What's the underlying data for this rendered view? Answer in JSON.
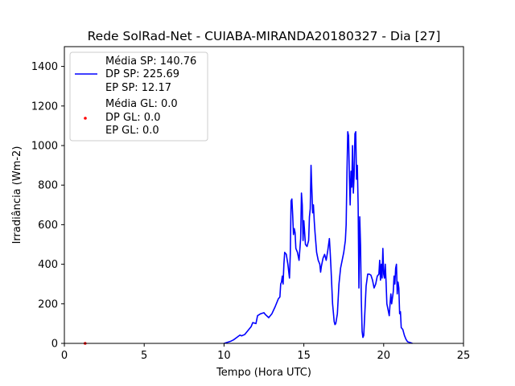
{
  "chart_data": {
    "type": "line",
    "title": "Rede SolRad-Net - CUIABA-MIRANDA20180327 - Dia [27]",
    "xlabel": "Tempo (Hora UTC)",
    "ylabel": "Irradiância (Wm-2)",
    "xlim": [
      0,
      25
    ],
    "ylim": [
      0,
      1500
    ],
    "xticks": [
      0,
      5,
      10,
      15,
      20,
      25
    ],
    "yticks": [
      0,
      200,
      400,
      600,
      800,
      1000,
      1200,
      1400
    ],
    "legend_position": "upper-left",
    "legend": {
      "sp": [
        "Média SP: 140.76",
        "DP SP: 225.69",
        "EP SP: 12.17"
      ],
      "gl": [
        "Média GL: 0.0",
        "DP GL: 0.0",
        "EP GL: 0.0"
      ]
    },
    "colors": {
      "sp": "#0000ff",
      "gl": "#ff0000"
    },
    "series": [
      {
        "values": [
          [
            10.0,
            0
          ],
          [
            10.2,
            5
          ],
          [
            10.4,
            10
          ],
          [
            10.6,
            18
          ],
          [
            10.8,
            30
          ],
          [
            11.0,
            42
          ],
          [
            11.1,
            38
          ],
          [
            11.3,
            45
          ],
          [
            11.5,
            65
          ],
          [
            11.7,
            85
          ],
          [
            11.8,
            105
          ],
          [
            12.0,
            100
          ],
          [
            12.1,
            140
          ],
          [
            12.3,
            150
          ],
          [
            12.5,
            155
          ],
          [
            12.6,
            145
          ],
          [
            12.8,
            130
          ],
          [
            13.0,
            150
          ],
          [
            13.2,
            185
          ],
          [
            13.4,
            225
          ],
          [
            13.5,
            235
          ],
          [
            13.55,
            300
          ],
          [
            13.6,
            310
          ],
          [
            13.65,
            340
          ],
          [
            13.7,
            300
          ],
          [
            13.75,
            400
          ],
          [
            13.8,
            460
          ],
          [
            13.9,
            450
          ],
          [
            14.0,
            400
          ],
          [
            14.1,
            330
          ],
          [
            14.15,
            450
          ],
          [
            14.2,
            720
          ],
          [
            14.25,
            730
          ],
          [
            14.3,
            650
          ],
          [
            14.35,
            550
          ],
          [
            14.4,
            580
          ],
          [
            14.45,
            560
          ],
          [
            14.5,
            480
          ],
          [
            14.6,
            460
          ],
          [
            14.7,
            420
          ],
          [
            14.8,
            530
          ],
          [
            14.85,
            760
          ],
          [
            14.9,
            700
          ],
          [
            14.95,
            520
          ],
          [
            15.0,
            620
          ],
          [
            15.05,
            560
          ],
          [
            15.1,
            500
          ],
          [
            15.2,
            490
          ],
          [
            15.3,
            520
          ],
          [
            15.35,
            640
          ],
          [
            15.4,
            680
          ],
          [
            15.45,
            900
          ],
          [
            15.5,
            780
          ],
          [
            15.55,
            660
          ],
          [
            15.6,
            700
          ],
          [
            15.65,
            620
          ],
          [
            15.7,
            560
          ],
          [
            15.8,
            460
          ],
          [
            15.9,
            420
          ],
          [
            16.0,
            400
          ],
          [
            16.05,
            360
          ],
          [
            16.1,
            390
          ],
          [
            16.2,
            430
          ],
          [
            16.3,
            450
          ],
          [
            16.4,
            420
          ],
          [
            16.5,
            470
          ],
          [
            16.55,
            500
          ],
          [
            16.6,
            530
          ],
          [
            16.65,
            460
          ],
          [
            16.7,
            380
          ],
          [
            16.8,
            200
          ],
          [
            16.9,
            110
          ],
          [
            16.95,
            95
          ],
          [
            17.0,
            100
          ],
          [
            17.1,
            150
          ],
          [
            17.2,
            300
          ],
          [
            17.3,
            380
          ],
          [
            17.4,
            420
          ],
          [
            17.5,
            460
          ],
          [
            17.6,
            520
          ],
          [
            17.65,
            600
          ],
          [
            17.7,
            860
          ],
          [
            17.75,
            1070
          ],
          [
            17.8,
            1050
          ],
          [
            17.85,
            850
          ],
          [
            17.9,
            700
          ],
          [
            17.95,
            870
          ],
          [
            18.0,
            790
          ],
          [
            18.05,
            1000
          ],
          [
            18.1,
            760
          ],
          [
            18.15,
            850
          ],
          [
            18.2,
            1060
          ],
          [
            18.25,
            1070
          ],
          [
            18.3,
            830
          ],
          [
            18.35,
            900
          ],
          [
            18.4,
            700
          ],
          [
            18.45,
            280
          ],
          [
            18.5,
            640
          ],
          [
            18.55,
            500
          ],
          [
            18.6,
            220
          ],
          [
            18.65,
            60
          ],
          [
            18.7,
            30
          ],
          [
            18.75,
            40
          ],
          [
            18.8,
            120
          ],
          [
            18.9,
            290
          ],
          [
            19.0,
            350
          ],
          [
            19.1,
            350
          ],
          [
            19.2,
            345
          ],
          [
            19.3,
            320
          ],
          [
            19.4,
            280
          ],
          [
            19.5,
            300
          ],
          [
            19.6,
            340
          ],
          [
            19.7,
            350
          ],
          [
            19.75,
            420
          ],
          [
            19.8,
            320
          ],
          [
            19.85,
            400
          ],
          [
            19.9,
            330
          ],
          [
            19.95,
            480
          ],
          [
            20.0,
            350
          ],
          [
            20.05,
            330
          ],
          [
            20.1,
            400
          ],
          [
            20.15,
            310
          ],
          [
            20.2,
            200
          ],
          [
            20.3,
            160
          ],
          [
            20.35,
            140
          ],
          [
            20.4,
            200
          ],
          [
            20.45,
            250
          ],
          [
            20.5,
            200
          ],
          [
            20.55,
            230
          ],
          [
            20.6,
            260
          ],
          [
            20.65,
            340
          ],
          [
            20.7,
            300
          ],
          [
            20.75,
            380
          ],
          [
            20.8,
            400
          ],
          [
            20.85,
            250
          ],
          [
            20.9,
            310
          ],
          [
            20.95,
            280
          ],
          [
            21.0,
            150
          ],
          [
            21.05,
            160
          ],
          [
            21.1,
            80
          ],
          [
            21.2,
            70
          ],
          [
            21.3,
            40
          ],
          [
            21.4,
            20
          ],
          [
            21.5,
            8
          ],
          [
            21.7,
            3
          ],
          [
            21.8,
            0
          ]
        ]
      },
      {
        "values": [
          [
            1.3,
            0
          ]
        ]
      }
    ]
  }
}
